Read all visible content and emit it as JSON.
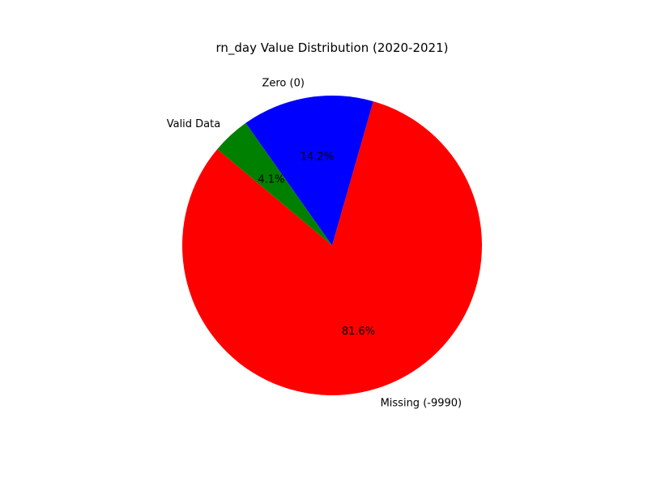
{
  "chart_data": {
    "type": "pie",
    "title": "rn_day Value Distribution (2020-2021)",
    "start_angle_deg": 140,
    "direction": "counterclockwise",
    "slices": [
      {
        "label": "Missing (-9990)",
        "value": 81.6,
        "pct_label": "81.6%",
        "color": "#ff0000"
      },
      {
        "label": "Zero (0)",
        "value": 14.2,
        "pct_label": "14.2%",
        "color": "#0000ff"
      },
      {
        "label": "Valid Data",
        "value": 4.1,
        "pct_label": "4.1%",
        "color": "#008000"
      }
    ]
  }
}
